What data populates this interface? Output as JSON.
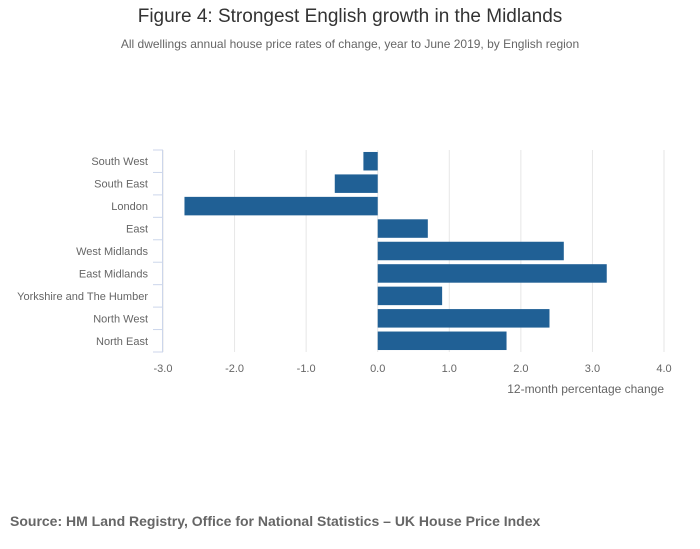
{
  "chart_data": {
    "type": "bar",
    "orientation": "horizontal",
    "title": "Figure 4: Strongest English growth in the Midlands",
    "subtitle": "All dwellings annual house price rates of change, year to June 2019, by English region",
    "categories": [
      "South West",
      "South East",
      "London",
      "East",
      "West Midlands",
      "East Midlands",
      "Yorkshire and The Humber",
      "North West",
      "North East"
    ],
    "values": [
      -0.2,
      -0.6,
      -2.7,
      0.7,
      2.6,
      3.2,
      0.9,
      2.4,
      1.8
    ],
    "xlabel": "12-month percentage change",
    "ylabel": "",
    "xlim": [
      -3.0,
      4.0
    ],
    "xticks": [
      -3.0,
      -2.0,
      -1.0,
      0.0,
      1.0,
      2.0,
      3.0,
      4.0
    ],
    "xtick_labels": [
      "-3.0",
      "-2.0",
      "-1.0",
      "0.0",
      "1.0",
      "2.0",
      "3.0",
      "4.0"
    ],
    "grid": true,
    "bar_color": "#206095",
    "grid_color": "#e6e6e6"
  },
  "source": "Source: HM Land Registry, Office for National Statistics – UK House Price Index"
}
